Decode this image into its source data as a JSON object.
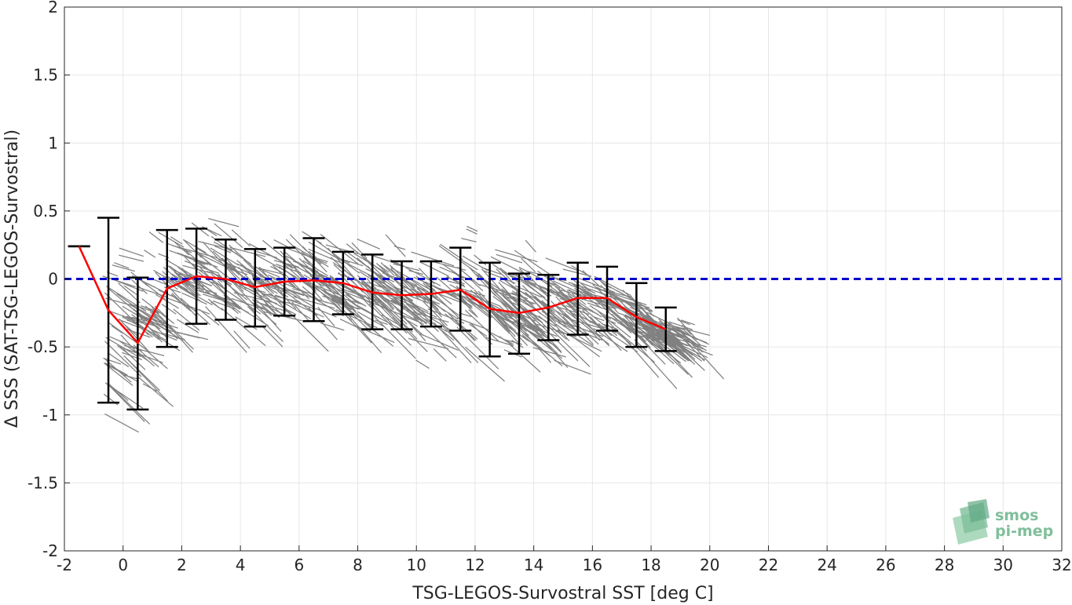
{
  "chart_data": {
    "type": "scatter",
    "xlabel": "TSG-LEGOS-Survostral SST [deg C]",
    "ylabel": "Δ SSS (SAT-TSG-LEGOS-Survostral)",
    "xlim": [
      -2,
      32
    ],
    "ylim": [
      -2,
      2
    ],
    "x_ticks": [
      -2,
      0,
      2,
      4,
      6,
      8,
      10,
      12,
      14,
      16,
      18,
      20,
      22,
      24,
      26,
      28,
      30,
      32
    ],
    "y_ticks": [
      -2,
      -1.5,
      -1,
      -0.5,
      0,
      0.5,
      1,
      1.5,
      2
    ],
    "grid": true,
    "reference_line": {
      "y": 0,
      "color": "#0000cc",
      "style": "dashed"
    },
    "scatter_color": "#808080",
    "mean_line_color": "#ff0000",
    "errorbar_color": "#000000",
    "series": [
      {
        "kind": "errorbar",
        "x": [
          -1.5,
          -0.5,
          0.5,
          1.5,
          2.5,
          3.5,
          4.5,
          5.5,
          6.5,
          7.5,
          8.5,
          9.5,
          10.5,
          11.5,
          12.5,
          13.5,
          14.5,
          15.5,
          16.5,
          17.5,
          18.5
        ],
        "y": [
          0.24,
          -0.23,
          -0.47,
          -0.07,
          0.02,
          0.0,
          -0.06,
          -0.02,
          -0.01,
          -0.03,
          -0.1,
          -0.12,
          -0.11,
          -0.08,
          -0.22,
          -0.25,
          -0.21,
          -0.14,
          -0.14,
          -0.28,
          -0.37
        ],
        "lower": [
          0.24,
          -0.91,
          -0.96,
          -0.5,
          -0.33,
          -0.3,
          -0.35,
          -0.27,
          -0.31,
          -0.26,
          -0.37,
          -0.37,
          -0.35,
          -0.38,
          -0.57,
          -0.55,
          -0.45,
          -0.41,
          -0.38,
          -0.5,
          -0.53
        ],
        "upper": [
          0.24,
          0.45,
          0.01,
          0.36,
          0.37,
          0.29,
          0.22,
          0.23,
          0.3,
          0.2,
          0.18,
          0.13,
          0.13,
          0.23,
          0.12,
          0.04,
          0.03,
          0.12,
          0.09,
          -0.03,
          -0.21
        ]
      }
    ],
    "scatter_envelope": {
      "x": [
        -0.5,
        0.5,
        1.5,
        2.5,
        3.5,
        4.5,
        5.5,
        6.5,
        7.5,
        8.5,
        9.5,
        10.5,
        11.5,
        12.5,
        13.5,
        14.5,
        15.5,
        16.5,
        17.5,
        18.5
      ],
      "center": [
        -0.35,
        -0.35,
        0.0,
        0.1,
        0.05,
        0.0,
        0.05,
        0.05,
        0.0,
        -0.05,
        -0.1,
        -0.1,
        -0.1,
        -0.15,
        -0.2,
        -0.2,
        -0.1,
        -0.2,
        -0.3,
        -0.38
      ],
      "spread": [
        0.6,
        0.45,
        0.4,
        0.35,
        0.33,
        0.32,
        0.3,
        0.33,
        0.3,
        0.32,
        0.33,
        0.34,
        0.36,
        0.38,
        0.36,
        0.3,
        0.25,
        0.2,
        0.15,
        0.1
      ]
    }
  },
  "logo": {
    "line1": "smos",
    "line2": "pi-mep"
  }
}
